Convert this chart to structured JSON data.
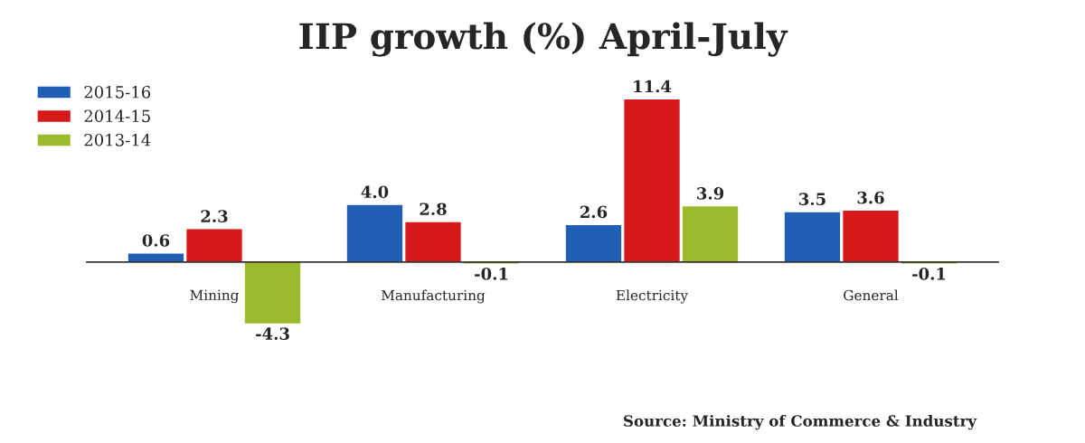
{
  "chart_data": {
    "type": "bar",
    "title": "IIP growth (%) April-July",
    "categories": [
      "Mining",
      "Manufacturing",
      "Electricity",
      "General"
    ],
    "series": [
      {
        "name": "2015-16",
        "color": "#1f5fb4",
        "values": [
          0.6,
          4.0,
          2.6,
          3.5
        ],
        "value_labels": [
          "0.6",
          "4.0",
          "2.6",
          "3.5"
        ]
      },
      {
        "name": "2014-15",
        "color": "#d7191c",
        "values": [
          2.3,
          2.8,
          11.4,
          3.6
        ],
        "value_labels": [
          "2.3",
          "2.8",
          "11.4",
          "3.6"
        ]
      },
      {
        "name": "2013-14",
        "color": "#9bbb2c",
        "values": [
          -4.3,
          -0.1,
          3.9,
          -0.1
        ],
        "value_labels": [
          "-4.3",
          "-0.1",
          "3.9",
          "-0.1"
        ]
      }
    ],
    "legend": "top left",
    "grid": false,
    "tick_labels": "x",
    "annotations": [
      "Source: Ministry of Commerce & Industry"
    ]
  }
}
